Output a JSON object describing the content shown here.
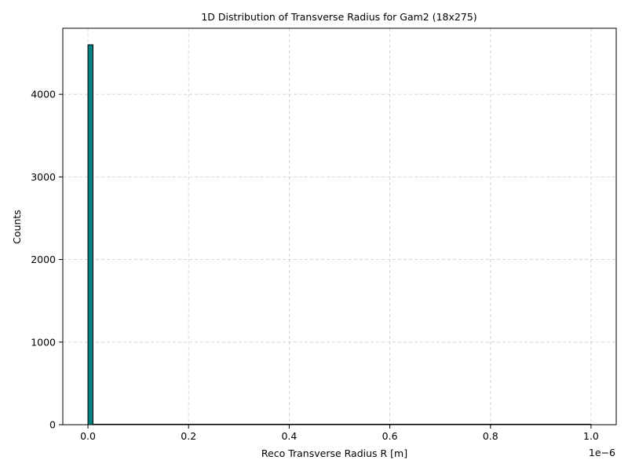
{
  "chart_data": {
    "type": "bar",
    "title": "1D Distribution of Transverse Radius for Gam2 (18x275)",
    "xlabel": "Reco Transverse Radius R [m]",
    "ylabel": "Counts",
    "x_offset_label": "1e−6",
    "xlim": [
      -0.05,
      1.05
    ],
    "ylim": [
      0,
      4800
    ],
    "xticks": [
      0.0,
      0.2,
      0.4,
      0.6,
      0.8,
      1.0
    ],
    "xtick_labels": [
      "0.0",
      "0.2",
      "0.4",
      "0.6",
      "0.8",
      "1.0"
    ],
    "yticks": [
      0,
      1000,
      2000,
      3000,
      4000
    ],
    "ytick_labels": [
      "0",
      "1000",
      "2000",
      "3000",
      "4000"
    ],
    "grid": true,
    "bin_edges": [
      0.0,
      0.01
    ],
    "values": [
      4600
    ],
    "colors": {
      "bar": "#008080",
      "edge": "#000000"
    }
  }
}
